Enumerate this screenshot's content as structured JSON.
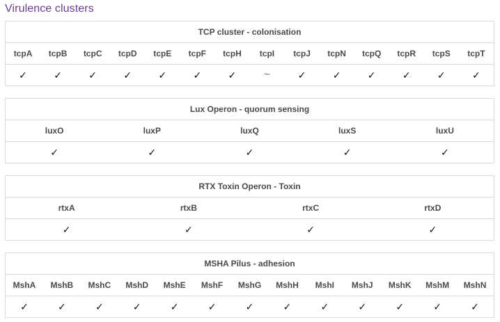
{
  "page_title": "Virulence clusters",
  "symbols": {
    "present": "✓",
    "partial": "~"
  },
  "clusters": [
    {
      "title": "TCP cluster - colonisation",
      "genes": [
        {
          "name": "tcpA",
          "status": "present"
        },
        {
          "name": "tcpB",
          "status": "present"
        },
        {
          "name": "tcpC",
          "status": "present"
        },
        {
          "name": "tcpD",
          "status": "present"
        },
        {
          "name": "tcpE",
          "status": "present"
        },
        {
          "name": "tcpF",
          "status": "present"
        },
        {
          "name": "tcpH",
          "status": "present"
        },
        {
          "name": "tcpI",
          "status": "partial"
        },
        {
          "name": "tcpJ",
          "status": "present"
        },
        {
          "name": "tcpN",
          "status": "present"
        },
        {
          "name": "tcpQ",
          "status": "present"
        },
        {
          "name": "tcpR",
          "status": "present"
        },
        {
          "name": "tcpS",
          "status": "present"
        },
        {
          "name": "tcpT",
          "status": "present"
        }
      ]
    },
    {
      "title": "Lux Operon - quorum sensing",
      "genes": [
        {
          "name": "luxO",
          "status": "present"
        },
        {
          "name": "luxP",
          "status": "present"
        },
        {
          "name": "luxQ",
          "status": "present"
        },
        {
          "name": "luxS",
          "status": "present"
        },
        {
          "name": "luxU",
          "status": "present"
        }
      ]
    },
    {
      "title": "RTX Toxin Operon - Toxin",
      "genes": [
        {
          "name": "rtxA",
          "status": "present"
        },
        {
          "name": "rtxB",
          "status": "present"
        },
        {
          "name": "rtxC",
          "status": "present"
        },
        {
          "name": "rtxD",
          "status": "present"
        }
      ]
    },
    {
      "title": "MSHA Pilus - adhesion",
      "genes": [
        {
          "name": "MshA",
          "status": "present"
        },
        {
          "name": "MshB",
          "status": "present"
        },
        {
          "name": "MshC",
          "status": "present"
        },
        {
          "name": "MshD",
          "status": "present"
        },
        {
          "name": "MshE",
          "status": "present"
        },
        {
          "name": "MshF",
          "status": "present"
        },
        {
          "name": "MshG",
          "status": "present"
        },
        {
          "name": "MshH",
          "status": "present"
        },
        {
          "name": "MshI",
          "status": "present"
        },
        {
          "name": "MshJ",
          "status": "present"
        },
        {
          "name": "MshK",
          "status": "present"
        },
        {
          "name": "MshM",
          "status": "present"
        },
        {
          "name": "MshN",
          "status": "present"
        }
      ]
    }
  ]
}
